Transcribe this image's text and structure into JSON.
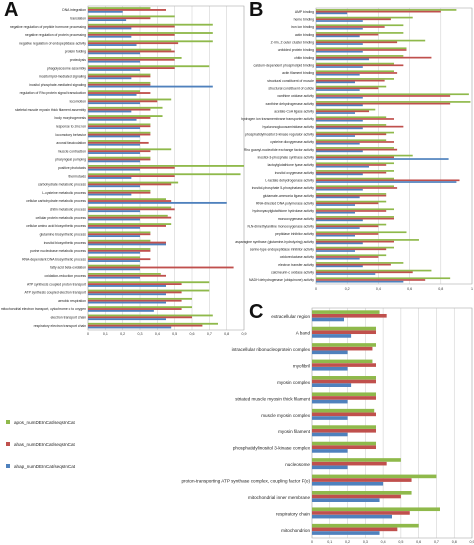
{
  "series_colors": {
    "apos": "#8fb94b",
    "ahas": "#c0504d",
    "ahap": "#4f81bd"
  },
  "legend": [
    {
      "key": "apos",
      "label": "apos_numDEInCat/seqsInCat"
    },
    {
      "key": "ahas",
      "label": "ahas_numDEInCat/seqsInCat"
    },
    {
      "key": "ahap",
      "label": "ahap_numDEInCat/seqsInCat"
    }
  ],
  "chart_data": [
    {
      "panel": "A",
      "type": "bar",
      "orientation": "horizontal",
      "xlim": [
        0,
        0.9
      ],
      "xticks": [
        "0",
        "0,1",
        "0,2",
        "0,3",
        "0,4",
        "0,5",
        "0,6",
        "0,7",
        "0,8",
        "0,9"
      ],
      "grid": true,
      "categories": [
        "DNA integration",
        "translation",
        "negative regulation of peptide hormone processing",
        "negative regulation of protein processing",
        "negative regulation of endopeptidase activity",
        "protein folding",
        "proteolysis",
        "phagolysosome assembly",
        "inositol lipid-mediated signaling",
        "inositol phosphate-mediated signaling",
        "regulation of Rho protein signal transduction",
        "locomotion",
        "skeletal muscle myosin thick filament assembly",
        "body morphogenesis",
        "response to zinc ion",
        "locomotory behavior",
        "axonal fasciculation",
        "muscle contraction",
        "pharyngeal pumping",
        "positive phototaxis",
        "thermotaxis",
        "carbohydrate metabolic process",
        "L-cysteine metabolic process",
        "cellular carbohydrate metabolic process",
        "chitin metabolic process",
        "cellular protein metabolic process",
        "cellular amino acid biosynthetic process",
        "glutamine biosynthetic process",
        "inositol biosynthetic process",
        "purine nucleobase metabolic process",
        "RNA-dependent DNA biosynthetic process",
        "fatty acid beta-oxidation",
        "oxidation-reduction process",
        "ATP synthesis coupled proton transport",
        "ATP synthesis coupled electron transport",
        "aerobic respiration",
        "mitochondrial electron transport, cytochrome c to oxygen",
        "electron transport chain",
        "respiratory electron transport chain"
      ],
      "series": [
        {
          "key": "apos",
          "values": [
            0.36,
            0.5,
            0.72,
            0.72,
            0.72,
            0.48,
            0.54,
            0.7,
            0.36,
            0.36,
            0.3,
            0.48,
            0.43,
            0.43,
            0.36,
            0.36,
            0.3,
            0.48,
            0.36,
            0.9,
            0.88,
            0.52,
            0.36,
            0.45,
            0.48,
            0.46,
            0.48,
            0.36,
            0.36,
            0.36,
            0.3,
            0.3,
            0.42,
            0.7,
            0.7,
            0.6,
            0.6,
            0.72,
            0.75
          ]
        },
        {
          "key": "ahas",
          "values": [
            0.45,
            0.36,
            0.5,
            0.5,
            0.52,
            0.5,
            0.5,
            0.5,
            0.36,
            0.36,
            0.36,
            0.4,
            0.36,
            0.36,
            0.36,
            0.36,
            0.35,
            0.36,
            0.36,
            0.5,
            0.5,
            0.48,
            0.36,
            0.48,
            0.5,
            0.48,
            0.45,
            0.36,
            0.45,
            0.36,
            0.36,
            0.84,
            0.45,
            0.54,
            0.54,
            0.54,
            0.54,
            0.6,
            0.66
          ]
        },
        {
          "key": "ahap",
          "values": [
            0.2,
            0.22,
            0.25,
            0.25,
            0.28,
            0.3,
            0.3,
            0.3,
            0.25,
            0.72,
            0.28,
            0.3,
            0.25,
            0.28,
            0.3,
            0.3,
            0.3,
            0.3,
            0.3,
            0.3,
            0.25,
            0.3,
            0.25,
            0.8,
            0.3,
            0.3,
            0.3,
            0.3,
            0.45,
            0.3,
            0.3,
            0.3,
            0.3,
            0.45,
            0.45,
            0.45,
            0.38,
            0.45,
            0.48
          ]
        }
      ]
    },
    {
      "panel": "B",
      "type": "bar",
      "orientation": "horizontal",
      "xlim": [
        0,
        1
      ],
      "xticks": [
        "0",
        "0,2",
        "0,4",
        "0,6",
        "0,8",
        "1"
      ],
      "grid": true,
      "categories": [
        "AMP binding",
        "heme binding",
        "iron ion binding",
        "actin binding",
        "Z-rim, Z outer cluster binding",
        "unfolded protein binding",
        "chitin binding",
        "calcium-dependent phospholipid binding",
        "actin filament binding",
        "structural constituent of muscle",
        "structural constituent of cuticle",
        "xanthine oxidase activity",
        "xanthine dehydrogenase activity",
        "acetate-CoA ligase activity",
        "hydrogen ion transmembrane transporter activity",
        "hyaluronoglucosaminidase activity",
        "phosphatidylinositol 3-kinase regulator activity",
        "cysteine dioxygenase activity",
        "Rho guanyl-nucleotide exchange factor activity",
        "inositol-3-phosphate synthase activity",
        "lactoylglutathione lyase activity",
        "inositol oxygenase activity",
        "L-lactate dehydrogenase activity",
        "inositol-phosphate 5-phosphatase activity",
        "glutamate-ammonia ligase activity",
        "RNA-directed DNA polymerase activity",
        "hydroxyacylglutathione hydrolase activity",
        "monooxygenase activity",
        "N,N-dimethylaniline monooxygenase activity",
        "peptidase inhibitor activity",
        "asparagine synthase (glutamine-hydrolyzing) activity",
        "serine-type endopeptidase inhibitor activity",
        "oxidoreductase activity",
        "electron transfer activity",
        "calcineurin-c oxidase activity",
        "NADH dehydrogenase (ubiquinone) activity"
      ],
      "series": [
        {
          "key": "apos",
          "values": [
            0.9,
            0.62,
            0.56,
            0.56,
            0.7,
            0.58,
            0.56,
            0.5,
            0.5,
            0.5,
            0.45,
            0.98,
            0.99,
            0.38,
            0.45,
            0.45,
            0.5,
            0.45,
            0.5,
            0.62,
            0.5,
            0.5,
            0.5,
            0.5,
            0.45,
            0.45,
            0.5,
            0.5,
            0.45,
            0.58,
            0.66,
            0.5,
            0.45,
            0.56,
            0.74,
            0.86
          ]
        },
        {
          "key": "ahas",
          "values": [
            0.8,
            0.48,
            0.44,
            0.4,
            0.52,
            0.58,
            0.74,
            0.56,
            0.52,
            0.44,
            0.4,
            0.86,
            0.86,
            0.34,
            0.5,
            0.56,
            0.45,
            0.5,
            0.52,
            0.5,
            0.45,
            0.45,
            0.92,
            0.52,
            0.45,
            0.4,
            0.45,
            0.5,
            0.4,
            0.4,
            0.5,
            0.45,
            0.4,
            0.48,
            0.62,
            0.7
          ]
        },
        {
          "key": "ahap",
          "values": [
            0.2,
            0.3,
            0.3,
            0.28,
            0.3,
            0.3,
            0.34,
            0.3,
            0.28,
            0.25,
            0.28,
            0.3,
            0.3,
            0.25,
            0.3,
            0.3,
            0.25,
            0.28,
            0.3,
            0.85,
            0.34,
            0.3,
            0.9,
            0.3,
            0.28,
            0.25,
            0.25,
            0.3,
            0.28,
            0.25,
            0.3,
            0.25,
            0.28,
            0.3,
            0.38,
            0.56
          ]
        }
      ]
    },
    {
      "panel": "C",
      "type": "bar",
      "orientation": "horizontal",
      "xlim": [
        0,
        0.9
      ],
      "xticks": [
        "0",
        "0,1",
        "0,2",
        "0,3",
        "0,4",
        "0,5",
        "0,6",
        "0,7",
        "0,8",
        "0,9"
      ],
      "grid": true,
      "categories": [
        "extracellular region",
        "A band",
        "intracellular ribonucleoprotein complex",
        "myofibril",
        "myosin complex",
        "striated muscle myosin thick filament",
        "muscle myosin complex",
        "myosin filament",
        "phosphatidylinositol 3-kinase complex",
        "nucleosome",
        "proton-transporting ATP synthase complex, coupling factor F(o)",
        "mitochondrial inner membrane",
        "respiratory chain",
        "mitochondrion"
      ],
      "series": [
        {
          "key": "apos",
          "values": [
            0.38,
            0.36,
            0.36,
            0.34,
            0.36,
            0.36,
            0.35,
            0.36,
            0.36,
            0.5,
            0.7,
            0.56,
            0.72,
            0.6
          ]
        },
        {
          "key": "ahas",
          "values": [
            0.42,
            0.36,
            0.34,
            0.36,
            0.36,
            0.36,
            0.36,
            0.36,
            0.36,
            0.42,
            0.56,
            0.5,
            0.55,
            0.48
          ]
        },
        {
          "key": "ahap",
          "values": [
            0.18,
            0.22,
            0.2,
            0.2,
            0.22,
            0.2,
            0.2,
            0.2,
            0.2,
            0.2,
            0.4,
            0.38,
            0.45,
            0.38
          ]
        }
      ]
    }
  ]
}
